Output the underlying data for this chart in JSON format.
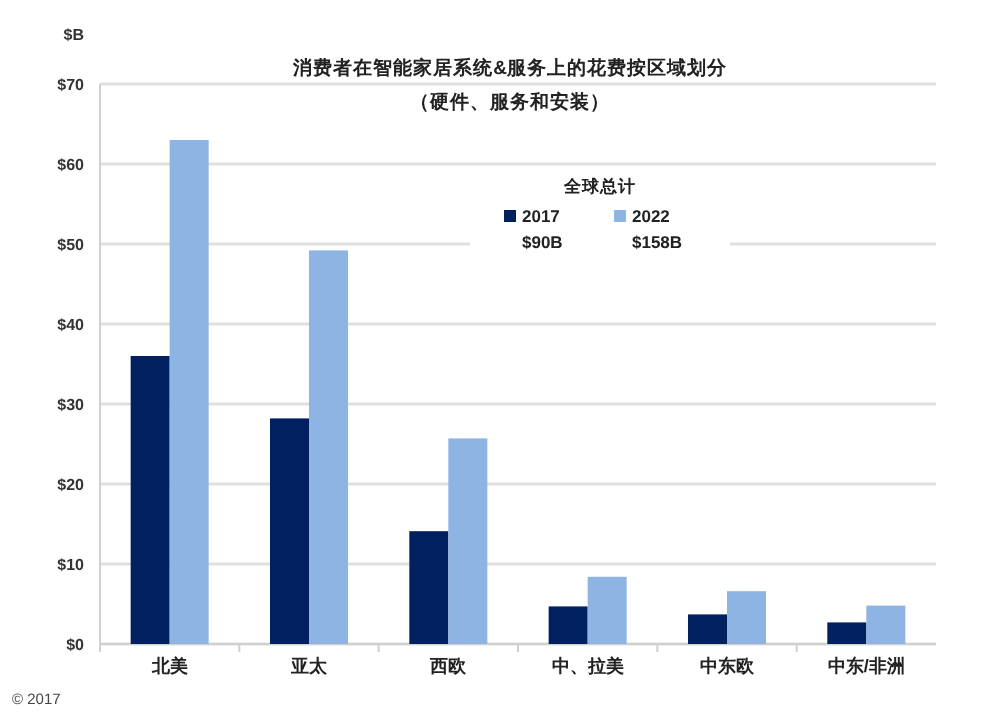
{
  "chart_data": {
    "type": "bar",
    "title": "消费者在智能家居系统&服务上的花费按区域划分",
    "subtitle": "（硬件、服务和安装）",
    "ylabel": "$B",
    "categories": [
      "北美",
      "亚太",
      "西欧",
      "中、拉美",
      "中东欧",
      "中东/非洲"
    ],
    "series": [
      {
        "name": "2017",
        "color": "#002060",
        "values": [
          36,
          28.2,
          14.1,
          4.7,
          3.7,
          2.7
        ]
      },
      {
        "name": "2022",
        "color": "#8eb4e3",
        "values": [
          63,
          49.2,
          25.7,
          8.4,
          6.6,
          4.8
        ]
      }
    ],
    "ylim": [
      0,
      70
    ],
    "yticks": [
      {
        "value": 0,
        "label": "$0"
      },
      {
        "value": 10,
        "label": "$10"
      },
      {
        "value": 20,
        "label": "$20"
      },
      {
        "value": 30,
        "label": "$30"
      },
      {
        "value": 40,
        "label": "$40"
      },
      {
        "value": 50,
        "label": "$50"
      },
      {
        "value": 60,
        "label": "$60"
      },
      {
        "value": 70,
        "label": "$70"
      }
    ],
    "grid": "y",
    "legend": "top right",
    "legend_title": "全球总计",
    "annotations": [
      "$90B",
      "$158B",
      "© 2017"
    ]
  }
}
